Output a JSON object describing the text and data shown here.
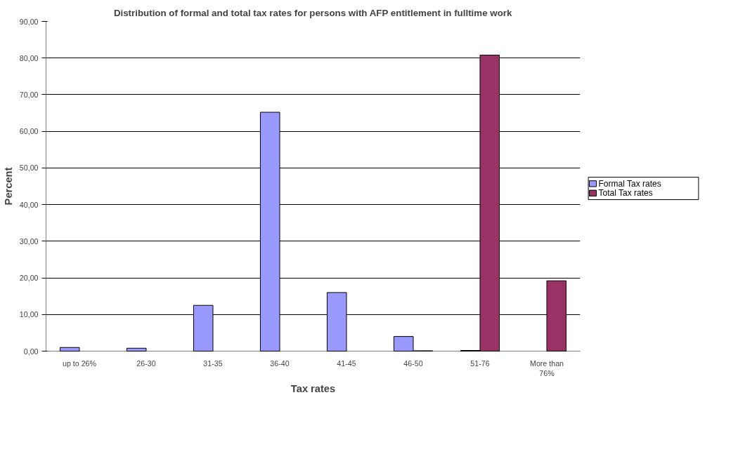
{
  "chart_data": {
    "type": "bar",
    "title": "Distribution of formal and total tax rates for persons with AFP entitlement in fulltime work",
    "xlabel": "Tax rates",
    "ylabel": "Percent",
    "categories": [
      "up to 26%",
      "26-30",
      "31-35",
      "36-40",
      "41-45",
      "46-50",
      "51-76",
      "More than 76%"
    ],
    "series": [
      {
        "name": "Formal Tax rates",
        "color": "#9999ff",
        "values": [
          1.0,
          0.8,
          12.5,
          65.2,
          16.0,
          4.0,
          0.2,
          null
        ]
      },
      {
        "name": "Total Tax rates",
        "color": "#993366",
        "values": [
          null,
          null,
          null,
          null,
          null,
          0.1,
          80.8,
          19.2
        ]
      }
    ],
    "ylim": [
      0,
      90
    ],
    "yticks": [
      {
        "value": 0,
        "label": "0,00"
      },
      {
        "value": 10,
        "label": "10,00"
      },
      {
        "value": 20,
        "label": "20,00"
      },
      {
        "value": 30,
        "label": "30,00"
      },
      {
        "value": 40,
        "label": "40,00"
      },
      {
        "value": 50,
        "label": "50,00"
      },
      {
        "value": 60,
        "label": "60,00"
      },
      {
        "value": 70,
        "label": "70,00"
      },
      {
        "value": 80,
        "label": "80,00"
      },
      {
        "value": 90,
        "label": "90,00"
      }
    ],
    "grid": "y",
    "legend": "right"
  }
}
